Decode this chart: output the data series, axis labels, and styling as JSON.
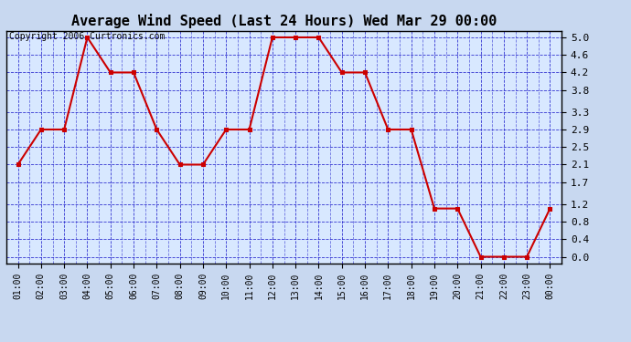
{
  "title": "Average Wind Speed (Last 24 Hours) Wed Mar 29 00:00",
  "copyright_text": "Copyright 2006 Curtronics.com",
  "x_labels": [
    "01:00",
    "02:00",
    "03:00",
    "04:00",
    "05:00",
    "06:00",
    "07:00",
    "08:00",
    "09:00",
    "10:00",
    "11:00",
    "12:00",
    "13:00",
    "14:00",
    "15:00",
    "16:00",
    "17:00",
    "18:00",
    "19:00",
    "20:00",
    "21:00",
    "22:00",
    "23:00",
    "00:00"
  ],
  "y_values": [
    2.1,
    2.9,
    2.9,
    5.0,
    4.2,
    4.2,
    2.9,
    2.1,
    2.1,
    2.9,
    2.9,
    5.0,
    5.0,
    5.0,
    4.2,
    4.2,
    2.9,
    2.9,
    1.1,
    1.1,
    0.0,
    0.0,
    0.0,
    1.1
  ],
  "y_ticks": [
    0.0,
    0.4,
    0.8,
    1.2,
    1.7,
    2.1,
    2.5,
    2.9,
    3.3,
    3.8,
    4.2,
    4.6,
    5.0
  ],
  "ylim": [
    0.0,
    5.0
  ],
  "line_color": "#cc0000",
  "marker_color": "#cc0000",
  "fig_bg_color": "#c8d8f0",
  "plot_bg_color": "#d8e8ff",
  "grid_color": "#2222cc",
  "border_color": "#000000",
  "title_fontsize": 11,
  "copyright_fontsize": 7,
  "tick_fontsize": 8,
  "xtick_fontsize": 7
}
